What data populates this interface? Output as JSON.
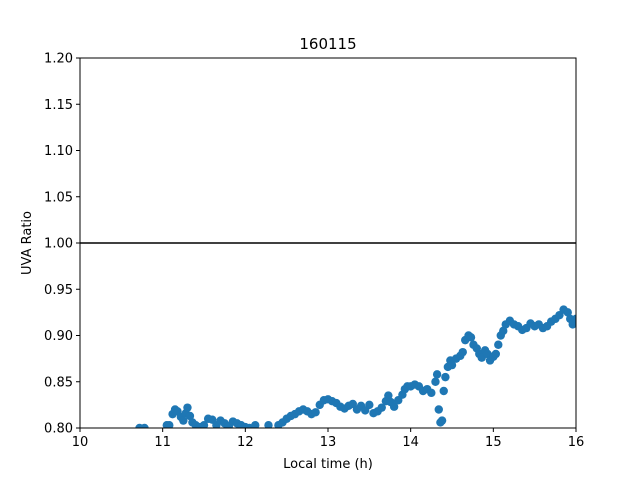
{
  "chart_data": {
    "type": "scatter",
    "title": "160115",
    "xlabel": "Local time (h)",
    "ylabel": "UVA Ratio",
    "xlim": [
      10,
      16
    ],
    "ylim": [
      0.8,
      1.2
    ],
    "xticks": [
      "10",
      "11",
      "12",
      "13",
      "14",
      "15",
      "16"
    ],
    "yticks": [
      "0.80",
      "0.85",
      "0.90",
      "0.95",
      "1.00",
      "1.05",
      "1.10",
      "1.15",
      "1.20"
    ],
    "grid": false,
    "reference_line": {
      "y": 1.0,
      "color": "#000000"
    },
    "series": [
      {
        "color": "#1f77b4",
        "points": [
          [
            10.72,
            0.8
          ],
          [
            10.78,
            0.8
          ],
          [
            11.05,
            0.803
          ],
          [
            11.08,
            0.803
          ],
          [
            11.12,
            0.815
          ],
          [
            11.15,
            0.82
          ],
          [
            11.18,
            0.818
          ],
          [
            11.22,
            0.812
          ],
          [
            11.25,
            0.808
          ],
          [
            11.28,
            0.816
          ],
          [
            11.3,
            0.822
          ],
          [
            11.33,
            0.813
          ],
          [
            11.36,
            0.806
          ],
          [
            11.4,
            0.803
          ],
          [
            11.45,
            0.801
          ],
          [
            11.5,
            0.803
          ],
          [
            11.55,
            0.81
          ],
          [
            11.6,
            0.809
          ],
          [
            11.65,
            0.803
          ],
          [
            11.7,
            0.808
          ],
          [
            11.75,
            0.805
          ],
          [
            11.8,
            0.802
          ],
          [
            11.85,
            0.807
          ],
          [
            11.9,
            0.805
          ],
          [
            11.95,
            0.803
          ],
          [
            12.0,
            0.801
          ],
          [
            12.05,
            0.8
          ],
          [
            12.12,
            0.803
          ],
          [
            12.28,
            0.803
          ],
          [
            12.4,
            0.803
          ],
          [
            12.45,
            0.806
          ],
          [
            12.5,
            0.81
          ],
          [
            12.55,
            0.813
          ],
          [
            12.6,
            0.815
          ],
          [
            12.65,
            0.818
          ],
          [
            12.7,
            0.82
          ],
          [
            12.75,
            0.818
          ],
          [
            12.8,
            0.815
          ],
          [
            12.85,
            0.817
          ],
          [
            12.9,
            0.825
          ],
          [
            12.95,
            0.83
          ],
          [
            13.0,
            0.831
          ],
          [
            13.05,
            0.829
          ],
          [
            13.1,
            0.827
          ],
          [
            13.15,
            0.823
          ],
          [
            13.2,
            0.821
          ],
          [
            13.25,
            0.824
          ],
          [
            13.3,
            0.826
          ],
          [
            13.35,
            0.82
          ],
          [
            13.4,
            0.824
          ],
          [
            13.45,
            0.819
          ],
          [
            13.5,
            0.825
          ],
          [
            13.55,
            0.816
          ],
          [
            13.6,
            0.818
          ],
          [
            13.65,
            0.822
          ],
          [
            13.7,
            0.829
          ],
          [
            13.73,
            0.835
          ],
          [
            13.76,
            0.828
          ],
          [
            13.8,
            0.823
          ],
          [
            13.85,
            0.83
          ],
          [
            13.9,
            0.836
          ],
          [
            13.93,
            0.842
          ],
          [
            13.96,
            0.845
          ],
          [
            14.0,
            0.845
          ],
          [
            14.05,
            0.847
          ],
          [
            14.1,
            0.845
          ],
          [
            14.15,
            0.84
          ],
          [
            14.2,
            0.842
          ],
          [
            14.25,
            0.838
          ],
          [
            14.3,
            0.85
          ],
          [
            14.32,
            0.858
          ],
          [
            14.34,
            0.82
          ],
          [
            14.36,
            0.806
          ],
          [
            14.38,
            0.808
          ],
          [
            14.4,
            0.84
          ],
          [
            14.42,
            0.855
          ],
          [
            14.45,
            0.866
          ],
          [
            14.48,
            0.873
          ],
          [
            14.5,
            0.868
          ],
          [
            14.55,
            0.875
          ],
          [
            14.6,
            0.878
          ],
          [
            14.63,
            0.882
          ],
          [
            14.66,
            0.895
          ],
          [
            14.7,
            0.9
          ],
          [
            14.73,
            0.898
          ],
          [
            14.76,
            0.89
          ],
          [
            14.8,
            0.886
          ],
          [
            14.83,
            0.88
          ],
          [
            14.86,
            0.876
          ],
          [
            14.9,
            0.884
          ],
          [
            14.93,
            0.88
          ],
          [
            14.96,
            0.873
          ],
          [
            15.0,
            0.877
          ],
          [
            15.03,
            0.88
          ],
          [
            15.06,
            0.89
          ],
          [
            15.09,
            0.9
          ],
          [
            15.12,
            0.905
          ],
          [
            15.15,
            0.912
          ],
          [
            15.2,
            0.916
          ],
          [
            15.25,
            0.912
          ],
          [
            15.3,
            0.91
          ],
          [
            15.35,
            0.906
          ],
          [
            15.4,
            0.908
          ],
          [
            15.45,
            0.913
          ],
          [
            15.5,
            0.91
          ],
          [
            15.55,
            0.912
          ],
          [
            15.6,
            0.908
          ],
          [
            15.65,
            0.91
          ],
          [
            15.7,
            0.915
          ],
          [
            15.75,
            0.918
          ],
          [
            15.8,
            0.922
          ],
          [
            15.85,
            0.928
          ],
          [
            15.9,
            0.925
          ],
          [
            15.93,
            0.918
          ],
          [
            15.96,
            0.912
          ],
          [
            16.0,
            0.918
          ]
        ]
      }
    ]
  }
}
